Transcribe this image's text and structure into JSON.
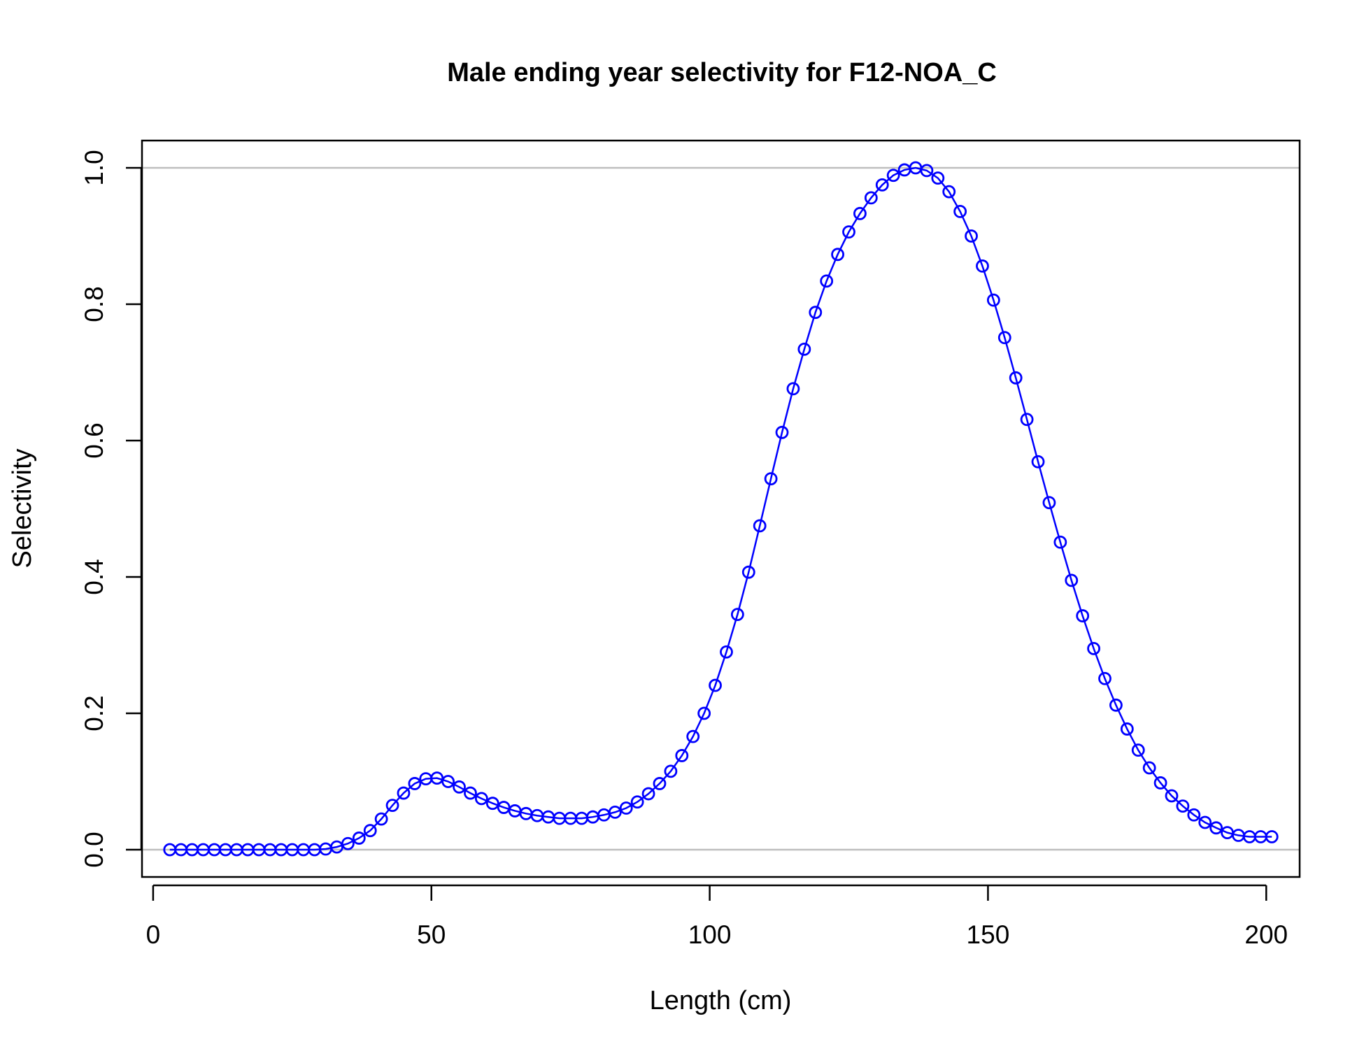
{
  "chart_data": {
    "type": "line",
    "title": "Male ending year selectivity for F12-NOA_C",
    "xlabel": "Length (cm)",
    "ylabel": "Selectivity",
    "xlim": [
      -2,
      206
    ],
    "ylim": [
      -0.04,
      1.04
    ],
    "x_ticks": [
      0,
      50,
      100,
      150,
      200
    ],
    "y_ticks": [
      0.0,
      0.2,
      0.4,
      0.6,
      0.8,
      1.0
    ],
    "x_tick_labels": [
      "0",
      "50",
      "100",
      "150",
      "200"
    ],
    "y_tick_labels": [
      "0.0",
      "0.2",
      "0.4",
      "0.6",
      "0.8",
      "1.0"
    ],
    "reference_lines_y": [
      0,
      1
    ],
    "grid": false,
    "legend": "none",
    "series_color": "#0000ff",
    "reference_color": "#bebebe",
    "markers": "open-circle",
    "x": [
      3,
      5,
      7,
      9,
      11,
      13,
      15,
      17,
      19,
      21,
      23,
      25,
      27,
      29,
      31,
      33,
      35,
      37,
      39,
      41,
      43,
      45,
      47,
      49,
      51,
      53,
      55,
      57,
      59,
      61,
      63,
      65,
      67,
      69,
      71,
      73,
      75,
      77,
      79,
      81,
      83,
      85,
      87,
      89,
      91,
      93,
      95,
      97,
      99,
      101,
      103,
      105,
      107,
      109,
      111,
      113,
      115,
      117,
      119,
      121,
      123,
      125,
      127,
      129,
      131,
      133,
      135,
      137,
      139,
      141,
      143,
      145,
      147,
      149,
      151,
      153,
      155,
      157,
      159,
      161,
      163,
      165,
      167,
      169,
      171,
      173,
      175,
      177,
      179,
      181,
      183,
      185,
      187,
      189,
      191,
      193,
      195,
      197,
      199,
      201
    ],
    "series": [
      {
        "values": [
          0,
          0,
          0,
          0,
          0,
          0,
          0,
          0,
          0,
          0,
          0,
          0,
          0,
          0,
          0.001,
          0.004,
          0.009,
          0.017,
          0.028,
          0.045,
          0.065,
          0.083,
          0.097,
          0.104,
          0.105,
          0.1,
          0.092,
          0.083,
          0.075,
          0.068,
          0.062,
          0.057,
          0.053,
          0.05,
          0.048,
          0.046,
          0.046,
          0.046,
          0.048,
          0.051,
          0.055,
          0.061,
          0.07,
          0.082,
          0.097,
          0.115,
          0.138,
          0.166,
          0.2,
          0.241,
          0.29,
          0.345,
          0.407,
          0.475,
          0.544,
          0.612,
          0.676,
          0.734,
          0.788,
          0.834,
          0.873,
          0.906,
          0.933,
          0.956,
          0.975,
          0.989,
          0.997,
          1.0,
          0.996,
          0.985,
          0.965,
          0.936,
          0.9,
          0.856,
          0.806,
          0.751,
          0.692,
          0.631,
          0.569,
          0.509,
          0.451,
          0.395,
          0.343,
          0.295,
          0.251,
          0.212,
          0.177,
          0.146,
          0.12,
          0.098,
          0.079,
          0.064,
          0.051,
          0.04,
          0.032,
          0.025,
          0.021,
          0.019,
          0.019,
          0.019
        ]
      }
    ]
  }
}
